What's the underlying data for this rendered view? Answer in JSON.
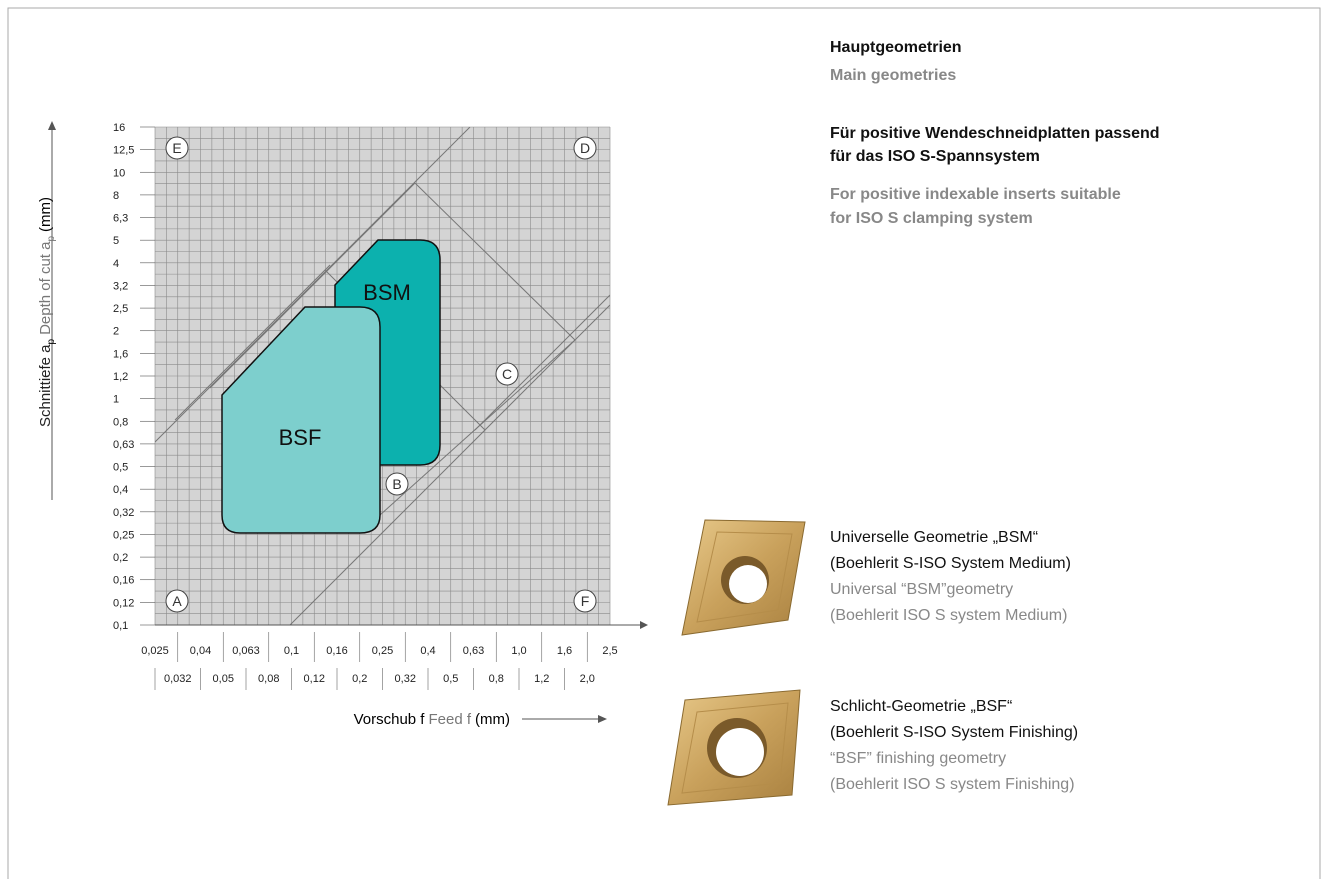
{
  "header": {
    "title_de": "Hauptgeometrien",
    "title_en": "Main geometries",
    "subtitle_de": [
      "Für positive Wendeschneidplatten passend",
      "für das ISO S-Spannsystem"
    ],
    "subtitle_en": [
      "For positive indexable inserts suitable",
      "for ISO S clamping system"
    ]
  },
  "diagram": {
    "y_axis_label": {
      "de": "Schnittiefe a",
      "de_sub": "p",
      "en": "Depth of cut a",
      "en_sub": "p",
      "unit": "(mm)"
    },
    "x_axis_label": {
      "de": "Vorschub f",
      "en": "Feed f",
      "unit": "(mm)"
    },
    "y_ticks": [
      "16",
      "12,5",
      "10",
      "8",
      "6,3",
      "5",
      "4",
      "3,2",
      "2,5",
      "2",
      "1,6",
      "1,2",
      "1",
      "0,8",
      "0,63",
      "0,5",
      "0,4",
      "0,32",
      "0,25",
      "0,2",
      "0,16",
      "0,12",
      "0,1"
    ],
    "x_ticks_upper": [
      "0,025",
      "0,04",
      "0,063",
      "0,1",
      "0,16",
      "0,25",
      "0,4",
      "0,63",
      "1,0",
      "1,6",
      "2,5"
    ],
    "x_ticks_lower": [
      "0,032",
      "0,05",
      "0,08",
      "0,12",
      "0,2",
      "0,32",
      "0,5",
      "0,8",
      "1,2",
      "2,0"
    ],
    "regions": [
      {
        "label": "BSM"
      },
      {
        "label": "BSF"
      }
    ],
    "zones": [
      "E",
      "D",
      "C",
      "B",
      "A",
      "F"
    ]
  },
  "products": [
    {
      "lines": [
        "Universelle Geometrie „BSM“",
        "(Boehlerit S-ISO System Medium)",
        "Universal “BSM”geometry",
        "(Boehlerit ISO S system Medium)"
      ]
    },
    {
      "lines": [
        "Schlicht-Geometrie „BSF“",
        "(Boehlerit S-ISO System Finishing)",
        "“BSF” finishing geometry",
        "(Boehlerit ISO S system Finishing)"
      ]
    }
  ]
}
